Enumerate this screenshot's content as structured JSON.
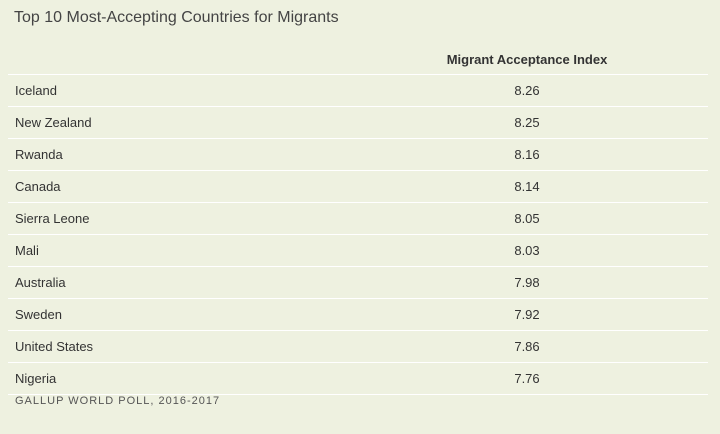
{
  "title": "Top 10 Most-Accepting Countries for Migrants",
  "table": {
    "header": [
      "",
      "Migrant Acceptance Index"
    ],
    "rows": [
      [
        "Iceland",
        "8.26"
      ],
      [
        "New Zealand",
        "8.25"
      ],
      [
        "Rwanda",
        "8.16"
      ],
      [
        "Canada",
        "8.14"
      ],
      [
        "Sierra Leone",
        "8.05"
      ],
      [
        "Mali",
        "8.03"
      ],
      [
        "Australia",
        "7.98"
      ],
      [
        "Sweden",
        "7.92"
      ],
      [
        "United States",
        "7.86"
      ],
      [
        "Nigeria",
        "7.76"
      ]
    ]
  },
  "source": "GALLUP WORLD POLL, 2016-2017"
}
